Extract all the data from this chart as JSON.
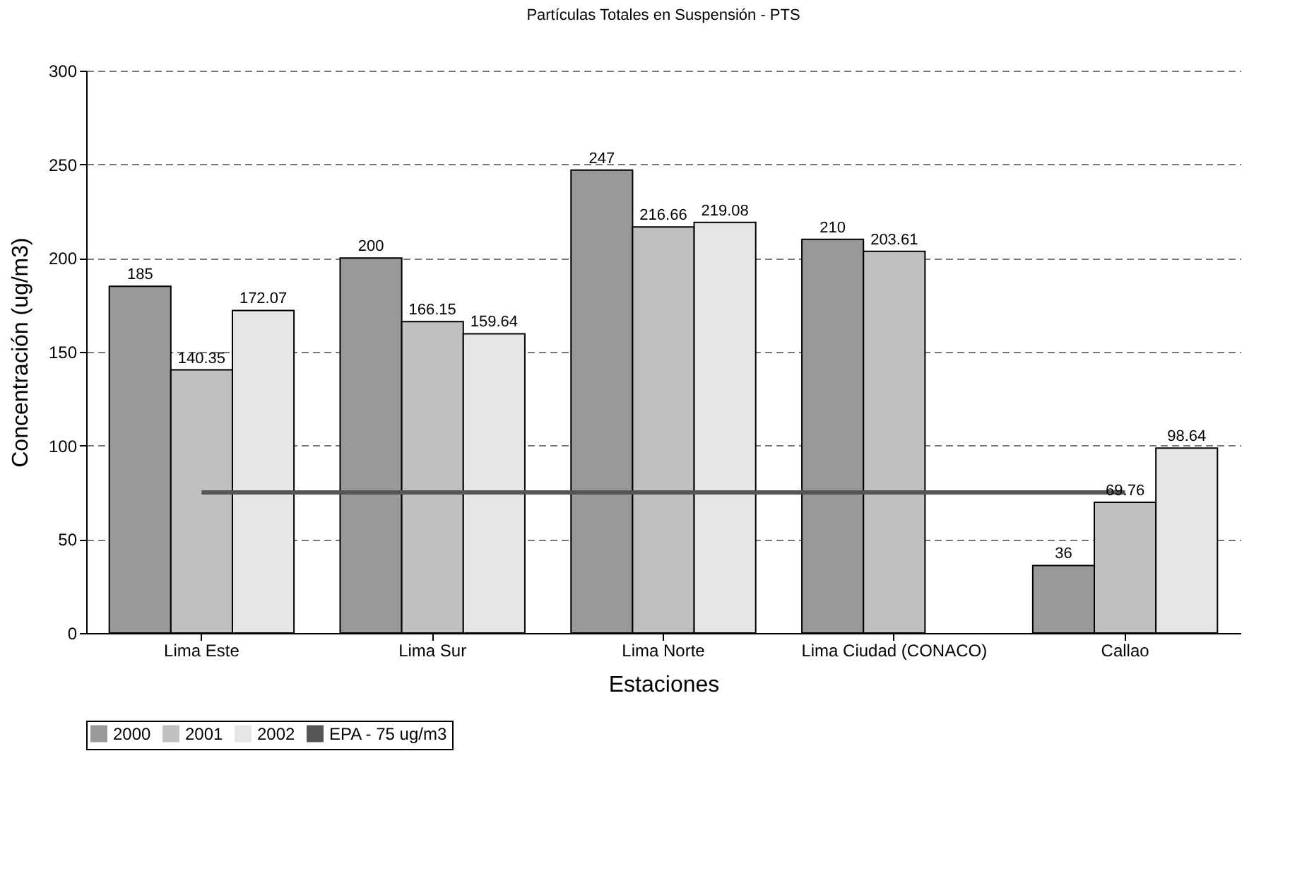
{
  "chart_data": {
    "type": "bar",
    "title": "Partículas Totales en Suspensión - PTS",
    "xlabel": "Estaciones",
    "ylabel": "Concentración (ug/m3)",
    "categories": [
      "Lima Este",
      "Lima Sur",
      "Lima Norte",
      "Lima Ciudad (CONACO)",
      "Callao"
    ],
    "series": [
      {
        "name": "2000",
        "color": "#999999",
        "values": [
          185,
          200,
          247,
          210,
          36
        ],
        "value_labels": [
          "185",
          "200",
          "247",
          "210",
          "36"
        ]
      },
      {
        "name": "2001",
        "color": "#c0c0c0",
        "values": [
          140.35,
          166.15,
          216.66,
          203.61,
          69.76
        ],
        "value_labels": [
          "140.35",
          "166.15",
          "216.66",
          "203.61",
          "69.76"
        ]
      },
      {
        "name": "2002",
        "color": "#e6e6e6",
        "values": [
          172.07,
          159.64,
          219.08,
          null,
          98.64
        ],
        "value_labels": [
          "172.07",
          "159.64",
          "219.08",
          null,
          "98.64"
        ]
      },
      {
        "name": "EPA - 75 ug/m3",
        "type": "line",
        "color": "#555555",
        "values": [
          75,
          75,
          75,
          75,
          75
        ]
      }
    ],
    "ylim": [
      0,
      300
    ],
    "yticks": [
      0,
      50,
      100,
      150,
      200,
      250,
      300
    ],
    "grid": "y",
    "legend": "bottom"
  }
}
